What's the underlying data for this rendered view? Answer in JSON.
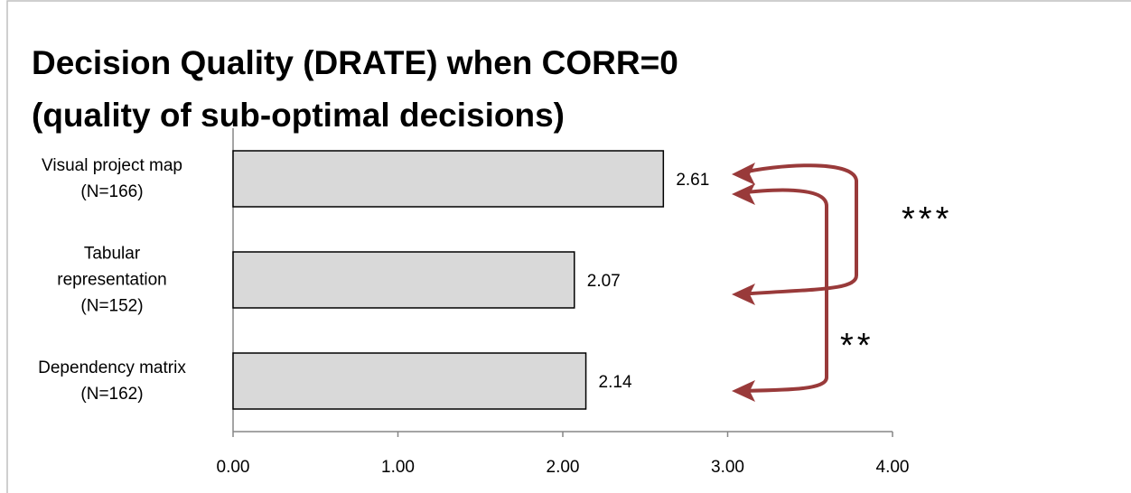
{
  "chart_data": {
    "type": "bar",
    "orientation": "horizontal",
    "title": "Decision Quality (DRATE) when CORR=0",
    "subtitle": "(quality of sub-optimal decisions)",
    "categories": [
      "Visual project map\n(N=166)",
      "Tabular\nrepresentation\n(N=152)",
      "Dependency matrix\n(N=162)"
    ],
    "values": [
      2.61,
      2.07,
      2.14
    ],
    "color": "#d9d9d9",
    "xlim": [
      0,
      4
    ],
    "xticks": [
      {
        "value": 0,
        "label": "0.00"
      },
      {
        "value": 1,
        "label": "1.00"
      },
      {
        "value": 2,
        "label": "2.00"
      },
      {
        "value": 3,
        "label": "3.00"
      },
      {
        "value": 4,
        "label": "4.00"
      }
    ],
    "annotations": [
      "***",
      "**"
    ],
    "grid": false
  }
}
